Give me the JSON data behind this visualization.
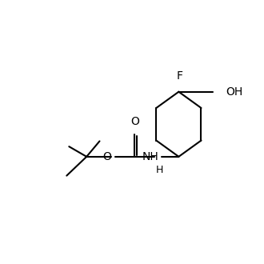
{
  "background_color": "#ffffff",
  "line_color": "#000000",
  "line_width": 1.5,
  "font_size": 10,
  "text_color": "#000000",
  "figsize": [
    3.3,
    3.3
  ],
  "dpi": 100,
  "xlim": [
    0,
    10
  ],
  "ylim": [
    0,
    10
  ]
}
